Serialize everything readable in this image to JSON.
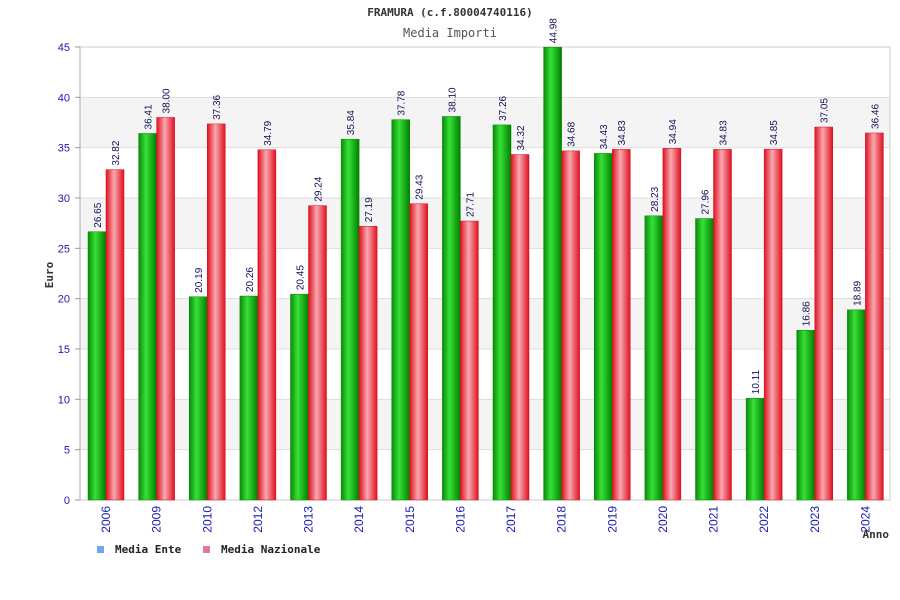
{
  "chart_data": {
    "type": "bar",
    "title": "FRAMURA (c.f.80004740116)",
    "subtitle": "Media Importi",
    "ylabel": "Euro",
    "xlabel": "Anno",
    "ylim": [
      0,
      45
    ],
    "yticks": [
      "0",
      "5",
      "10",
      "15",
      "20",
      "25",
      "30",
      "35",
      "40",
      "45"
    ],
    "grid": true,
    "legend_position": "bottom-left",
    "categories": [
      "2006",
      "2009",
      "2010",
      "2012",
      "2013",
      "2014",
      "2015",
      "2016",
      "2017",
      "2018",
      "2019",
      "2020",
      "2021",
      "2022",
      "2023",
      "2024"
    ],
    "series": [
      {
        "name": "Media Ente",
        "color": "#00b000",
        "legend_color": "#6ea8e8",
        "values": [
          26.65,
          36.41,
          20.19,
          20.26,
          20.45,
          35.84,
          37.78,
          38.1,
          37.26,
          44.98,
          34.43,
          28.23,
          27.96,
          10.11,
          16.86,
          18.89
        ],
        "labels": [
          "26.65",
          "36.41",
          "20.19",
          "20.26",
          "20.45",
          "35.84",
          "37.78",
          "38.10",
          "37.26",
          "44.98",
          "34.43",
          "28.23",
          "27.96",
          "10.11",
          "16.86",
          "18.89"
        ]
      },
      {
        "name": "Media Nazionale",
        "color": "#e8182a",
        "legend_color": "#e07898",
        "values": [
          32.82,
          38.0,
          37.36,
          34.79,
          29.24,
          27.19,
          29.43,
          27.71,
          34.32,
          34.68,
          34.83,
          34.94,
          34.83,
          34.85,
          37.05,
          36.46
        ],
        "labels": [
          "32.82",
          "38.00",
          "37.36",
          "34.79",
          "29.24",
          "27.19",
          "29.43",
          "27.71",
          "34.32",
          "34.68",
          "34.83",
          "34.94",
          "34.83",
          "34.85",
          "37.05",
          "36.46"
        ]
      }
    ]
  }
}
